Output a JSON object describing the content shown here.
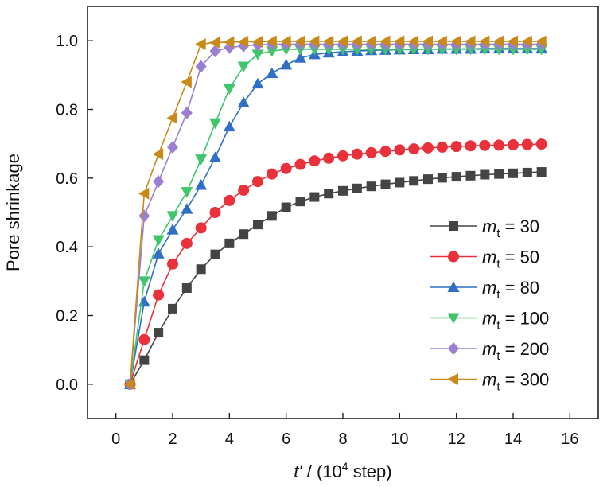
{
  "chart_data": {
    "type": "line",
    "title": "",
    "ylabel": "Pore shrinkage",
    "xlabel": {
      "italic_part": "t′",
      "pre": " / (10",
      "sup": "4",
      "post": " step)"
    },
    "xlim": [
      -1,
      17
    ],
    "ylim": [
      -0.1,
      1.1
    ],
    "xticks": [
      0,
      2,
      4,
      6,
      8,
      10,
      12,
      14,
      16
    ],
    "yticks": [
      0.0,
      0.2,
      0.4,
      0.6,
      0.8,
      1.0
    ],
    "xtick_labels": [
      "0",
      "2",
      "4",
      "6",
      "8",
      "10",
      "12",
      "14",
      "16"
    ],
    "ytick_labels": [
      "0.0",
      "0.2",
      "0.4",
      "0.6",
      "0.8",
      "1.0"
    ],
    "grid": false,
    "legend_position": "bottom-right",
    "series": [
      {
        "name": "m_t = 30",
        "legend": {
          "var": "m",
          "sub": "t",
          "rest": " = 30"
        },
        "color": "#444444",
        "marker": "square",
        "x": [
          0.5,
          1.0,
          1.5,
          2.0,
          2.5,
          3.0,
          3.5,
          4.0,
          4.5,
          5.0,
          5.5,
          6.0,
          6.5,
          7.0,
          7.5,
          8.0,
          8.5,
          9.0,
          9.5,
          10.0,
          10.5,
          11.0,
          11.5,
          12.0,
          12.5,
          13.0,
          13.5,
          14.0,
          14.5,
          15.0
        ],
        "y": [
          0.0,
          0.07,
          0.15,
          0.22,
          0.28,
          0.335,
          0.378,
          0.41,
          0.437,
          0.465,
          0.49,
          0.515,
          0.532,
          0.545,
          0.555,
          0.563,
          0.57,
          0.576,
          0.582,
          0.587,
          0.592,
          0.597,
          0.601,
          0.604,
          0.607,
          0.61,
          0.612,
          0.614,
          0.616,
          0.618
        ]
      },
      {
        "name": "m_t = 50",
        "legend": {
          "var": "m",
          "sub": "t",
          "rest": " = 50"
        },
        "color": "#e8313b",
        "marker": "circle",
        "x": [
          0.5,
          1.0,
          1.5,
          2.0,
          2.5,
          3.0,
          3.5,
          4.0,
          4.5,
          5.0,
          5.5,
          6.0,
          6.5,
          7.0,
          7.5,
          8.0,
          8.5,
          9.0,
          9.5,
          10.0,
          10.5,
          11.0,
          11.5,
          12.0,
          12.5,
          13.0,
          13.5,
          14.0,
          14.5,
          15.0
        ],
        "y": [
          0.0,
          0.13,
          0.26,
          0.35,
          0.41,
          0.455,
          0.5,
          0.535,
          0.565,
          0.59,
          0.612,
          0.628,
          0.64,
          0.65,
          0.658,
          0.665,
          0.67,
          0.674,
          0.678,
          0.682,
          0.685,
          0.688,
          0.69,
          0.692,
          0.694,
          0.695,
          0.696,
          0.697,
          0.698,
          0.699
        ]
      },
      {
        "name": "m_t = 80",
        "legend": {
          "var": "m",
          "sub": "t",
          "rest": " = 80"
        },
        "color": "#2f6fc5",
        "marker": "triangle-up",
        "x": [
          0.5,
          1.0,
          1.5,
          2.0,
          2.5,
          3.0,
          3.5,
          4.0,
          4.5,
          5.0,
          5.5,
          6.0,
          6.5,
          7.0,
          7.5,
          8.0,
          8.5,
          9.0,
          9.5,
          10.0,
          10.5,
          11.0,
          11.5,
          12.0,
          12.5,
          13.0,
          13.5,
          14.0,
          14.5,
          15.0
        ],
        "y": [
          0.0,
          0.24,
          0.38,
          0.45,
          0.51,
          0.58,
          0.66,
          0.75,
          0.82,
          0.875,
          0.905,
          0.93,
          0.95,
          0.96,
          0.965,
          0.968,
          0.97,
          0.972,
          0.973,
          0.974,
          0.975,
          0.975,
          0.976,
          0.976,
          0.976,
          0.977,
          0.977,
          0.977,
          0.977,
          0.977
        ]
      },
      {
        "name": "m_t = 100",
        "legend": {
          "var": "m",
          "sub": "t",
          "rest": " = 100"
        },
        "color": "#3fc56a",
        "marker": "triangle-down",
        "x": [
          0.5,
          1.0,
          1.5,
          2.0,
          2.5,
          3.0,
          3.5,
          4.0,
          4.5,
          5.0,
          5.5,
          6.0,
          6.5,
          7.0,
          7.5,
          8.0,
          8.5,
          9.0,
          9.5,
          10.0,
          10.5,
          11.0,
          11.5,
          12.0,
          12.5,
          13.0,
          13.5,
          14.0,
          14.5,
          15.0
        ],
        "y": [
          0.0,
          0.3,
          0.42,
          0.49,
          0.56,
          0.655,
          0.76,
          0.86,
          0.925,
          0.96,
          0.97,
          0.975,
          0.975,
          0.975,
          0.975,
          0.975,
          0.975,
          0.975,
          0.975,
          0.975,
          0.975,
          0.975,
          0.975,
          0.975,
          0.975,
          0.975,
          0.975,
          0.975,
          0.975,
          0.975
        ]
      },
      {
        "name": "m_t = 200",
        "legend": {
          "var": "m",
          "sub": "t",
          "rest": " = 200"
        },
        "color": "#9b7fd0",
        "marker": "diamond",
        "x": [
          0.5,
          1.0,
          1.5,
          2.0,
          2.5,
          3.0,
          3.5,
          4.0,
          4.5,
          5.0,
          5.5,
          6.0,
          6.5,
          7.0,
          7.5,
          8.0,
          8.5,
          9.0,
          9.5,
          10.0,
          10.5,
          11.0,
          11.5,
          12.0,
          12.5,
          13.0,
          13.5,
          14.0,
          14.5,
          15.0
        ],
        "y": [
          0.0,
          0.49,
          0.59,
          0.69,
          0.79,
          0.925,
          0.97,
          0.98,
          0.985,
          0.988,
          0.99,
          0.99,
          0.99,
          0.99,
          0.99,
          0.99,
          0.99,
          0.99,
          0.99,
          0.99,
          0.99,
          0.99,
          0.99,
          0.99,
          0.99,
          0.99,
          0.99,
          0.99,
          0.99,
          0.99
        ]
      },
      {
        "name": "m_t = 300",
        "legend": {
          "var": "m",
          "sub": "t",
          "rest": " = 300"
        },
        "color": "#c98a1a",
        "marker": "triangle-left",
        "x": [
          0.5,
          1.0,
          1.5,
          2.0,
          2.5,
          3.0,
          3.5,
          4.0,
          4.5,
          5.0,
          5.5,
          6.0,
          6.5,
          7.0,
          7.5,
          8.0,
          8.5,
          9.0,
          9.5,
          10.0,
          10.5,
          11.0,
          11.5,
          12.0,
          12.5,
          13.0,
          13.5,
          14.0,
          14.5,
          15.0
        ],
        "y": [
          0.0,
          0.555,
          0.67,
          0.775,
          0.88,
          0.99,
          0.995,
          0.996,
          0.997,
          0.997,
          0.998,
          0.998,
          0.998,
          0.998,
          0.998,
          0.998,
          0.998,
          0.998,
          0.998,
          0.998,
          0.998,
          0.998,
          0.998,
          0.998,
          0.998,
          0.998,
          0.998,
          0.998,
          0.998,
          0.998
        ]
      }
    ]
  }
}
